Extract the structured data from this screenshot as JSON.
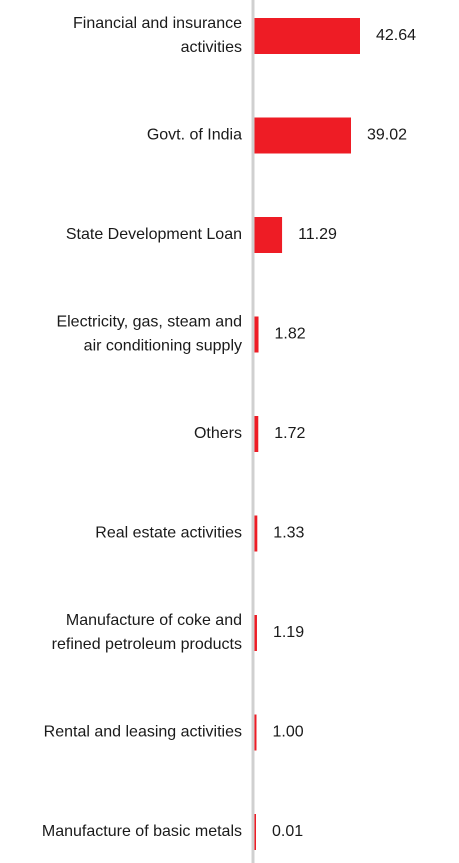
{
  "chart_data": {
    "type": "bar",
    "orientation": "horizontal",
    "categories": [
      [
        "Financial and insurance",
        "activities"
      ],
      [
        "Govt. of India"
      ],
      [
        "State Development Loan"
      ],
      [
        "Electricity, gas, steam and",
        "air conditioning supply"
      ],
      [
        "Others"
      ],
      [
        "Real estate activities"
      ],
      [
        "Manufacture of coke and",
        "refined petroleum products"
      ],
      [
        "Rental and leasing activities"
      ],
      [
        "Manufacture of basic metals"
      ]
    ],
    "values": [
      42.64,
      39.02,
      11.29,
      1.82,
      1.72,
      1.33,
      1.19,
      1.0,
      0.01
    ],
    "value_labels": [
      "42.64",
      "39.02",
      "11.29",
      "1.82",
      "1.72",
      "1.33",
      "1.19",
      "1.00",
      "0.01"
    ],
    "xlim": [
      0,
      42.64
    ],
    "bar_color": "#ee1c25",
    "axis_color": "#d0d0d0",
    "grid": false,
    "legend": "none",
    "title": "",
    "xlabel": "",
    "ylabel": ""
  }
}
